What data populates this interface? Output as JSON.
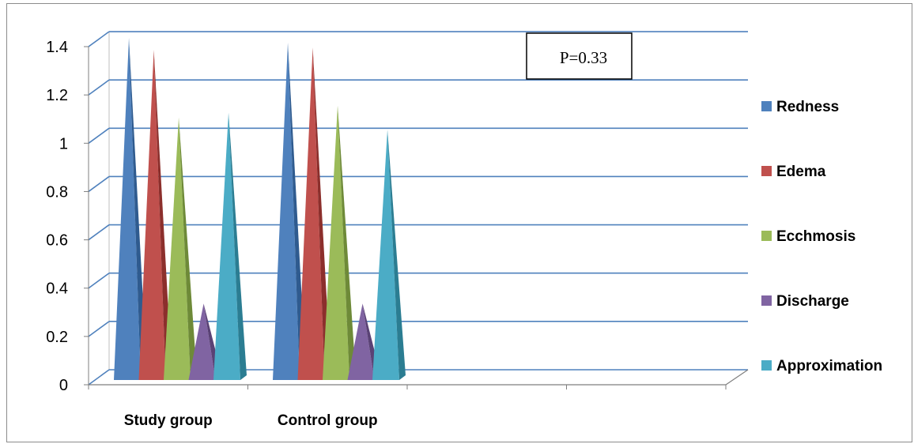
{
  "chart_data": {
    "type": "bar",
    "bar_shape": "cone-3d",
    "categories": [
      "Study group",
      "Control group"
    ],
    "series": [
      {
        "name": "Redness",
        "color": "#4f81bd",
        "side_color": "#2f5b8f",
        "values": [
          1.4,
          1.38
        ]
      },
      {
        "name": "Edema",
        "color": "#c0504d",
        "side_color": "#8c2f2c",
        "values": [
          1.35,
          1.36
        ]
      },
      {
        "name": "Ecchmosis",
        "color": "#9bbb59",
        "side_color": "#6e8a38",
        "values": [
          1.07,
          1.12
        ]
      },
      {
        "name": "Discharge",
        "color": "#8064a2",
        "side_color": "#5a4275",
        "values": [
          0.3,
          0.3
        ]
      },
      {
        "name": " Approximation",
        "color": "#4bacc6",
        "side_color": "#2b7d92",
        "values": [
          1.09,
          1.02
        ]
      }
    ],
    "y_ticks": [
      "0",
      "0.2",
      "0.4",
      "0.6",
      "0.8",
      "1",
      "1.2",
      "1.4"
    ],
    "ylim": [
      0,
      1.4
    ],
    "grid": true,
    "legend_position": "right",
    "annotation": "P=0.33",
    "grid_color": "#4f81bd"
  }
}
